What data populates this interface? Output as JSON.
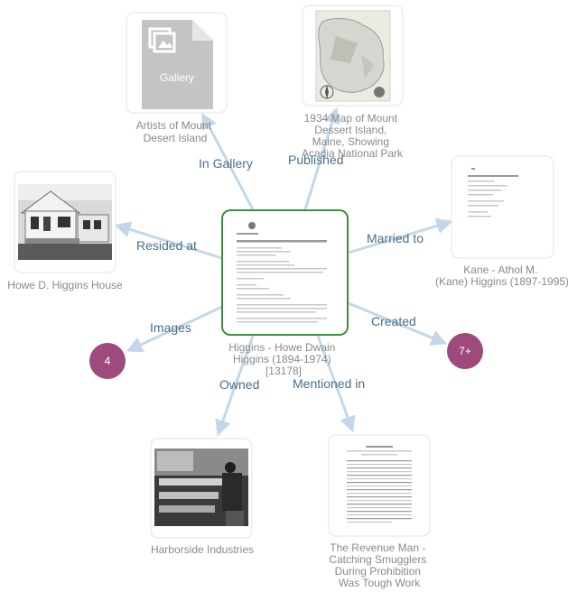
{
  "center": {
    "title": "Higgins - Howe Dwain Higgins (1894-1974) [13178]"
  },
  "nodes": {
    "gallery": {
      "label": "Artists of Mount Desert Island",
      "icon_text": "Gallery",
      "icon": "gallery-icon"
    },
    "map": {
      "label": "1934 Map of Mount Dessert Island, Maine, Showing Acadia National Park"
    },
    "spouse": {
      "label": "Kane - Athol M. (Kane) Higgins (1897-1995)"
    },
    "house": {
      "label": "Howe D. Higgins House"
    },
    "images": {
      "count": "4"
    },
    "created": {
      "count": "7+"
    },
    "industries": {
      "label": "Harborside Industries"
    },
    "article": {
      "label": "The Revenue Man - Catching Smugglers During Prohibition Was Tough Work"
    }
  },
  "edges": {
    "in_gallery": "In Gallery",
    "published": "Published",
    "married_to": "Married to",
    "resided_at": "Resided at",
    "images": "Images",
    "created": "Created",
    "owned": "Owned",
    "mentioned_in": "Mentioned in"
  },
  "colors": {
    "edge": "#c2d8ea",
    "edge_label": "#4a6f8a",
    "count_node": "#9e4a7c",
    "center_border": "#3f8f3f"
  }
}
